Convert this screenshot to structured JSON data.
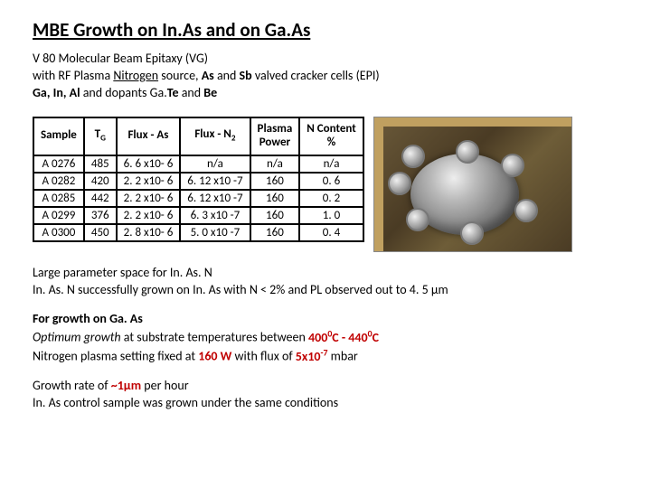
{
  "title": "MBE Growth on In.As and on Ga.As",
  "intro": {
    "line1a": "V 80 Molecular Beam Epitaxy (VG)",
    "line2a": "with RF Plasma ",
    "line2b": "Nitrogen",
    "line2c": " source, ",
    "line2d": "As",
    "line2e": " and ",
    "line2f": "Sb",
    "line2g": " valved cracker cells (EPI)",
    "line3a": "Ga, In, Al",
    "line3b": " and dopants Ga.",
    "line3c": "Te",
    "line3d": " and ",
    "line3e": "Be"
  },
  "table": {
    "headers": {
      "sample": "Sample",
      "tg_t": "T",
      "tg_g": "G",
      "flux_as": "Flux - As",
      "flux_n_pre": "Flux - N",
      "flux_n_sub": "2",
      "plasma1": "Plasma",
      "plasma2": "Power",
      "ncontent1": "N Content",
      "ncontent2": "%"
    },
    "rows": [
      {
        "sample": "A 0276",
        "tg": "485",
        "as": "6. 6 x10- 6",
        "n2": "n/a",
        "pp": "n/a",
        "nc": "n/a"
      },
      {
        "sample": "A 0282",
        "tg": "420",
        "as": "2. 2 x10- 6",
        "n2": "6. 12 x10 -7",
        "pp": "160",
        "nc": "0. 6"
      },
      {
        "sample": "A 0285",
        "tg": "442",
        "as": "2. 2 x10- 6",
        "n2": "6. 12 x10 -7",
        "pp": "160",
        "nc": "0. 2"
      },
      {
        "sample": "A 0299",
        "tg": "376",
        "as": "2. 2 x10- 6",
        "n2": "6. 3 x10 -7",
        "pp": "160",
        "nc": "1. 0"
      },
      {
        "sample": "A 0300",
        "tg": "450",
        "as": "2. 8 x10- 6",
        "n2": "5. 0 x10 -7",
        "pp": "160",
        "nc": "0. 4"
      }
    ]
  },
  "p1": {
    "a": "Large parameter space for In. As. N",
    "b": "In. As. N successfully grown on In. As with N < 2% and PL observed out to 4. 5 μm"
  },
  "p2": {
    "a": "For growth on Ga. As",
    "b1": "Optimum growth",
    "b2": " at substrate temperatures between ",
    "b3a": "400",
    "b3b": "0",
    "b3c": "C - 440",
    "b3d": "0",
    "b3e": "C",
    "c1": "Nitrogen plasma setting fixed at ",
    "c2": "160 W",
    "c3": " with flux of ",
    "c4a": "5x10",
    "c4b": "-7",
    "c5": " mbar"
  },
  "p3": {
    "a1": "Growth rate of ",
    "a2": "~1μm",
    "a3": " per hour",
    "b": "In. As control sample was grown under the same conditions"
  }
}
